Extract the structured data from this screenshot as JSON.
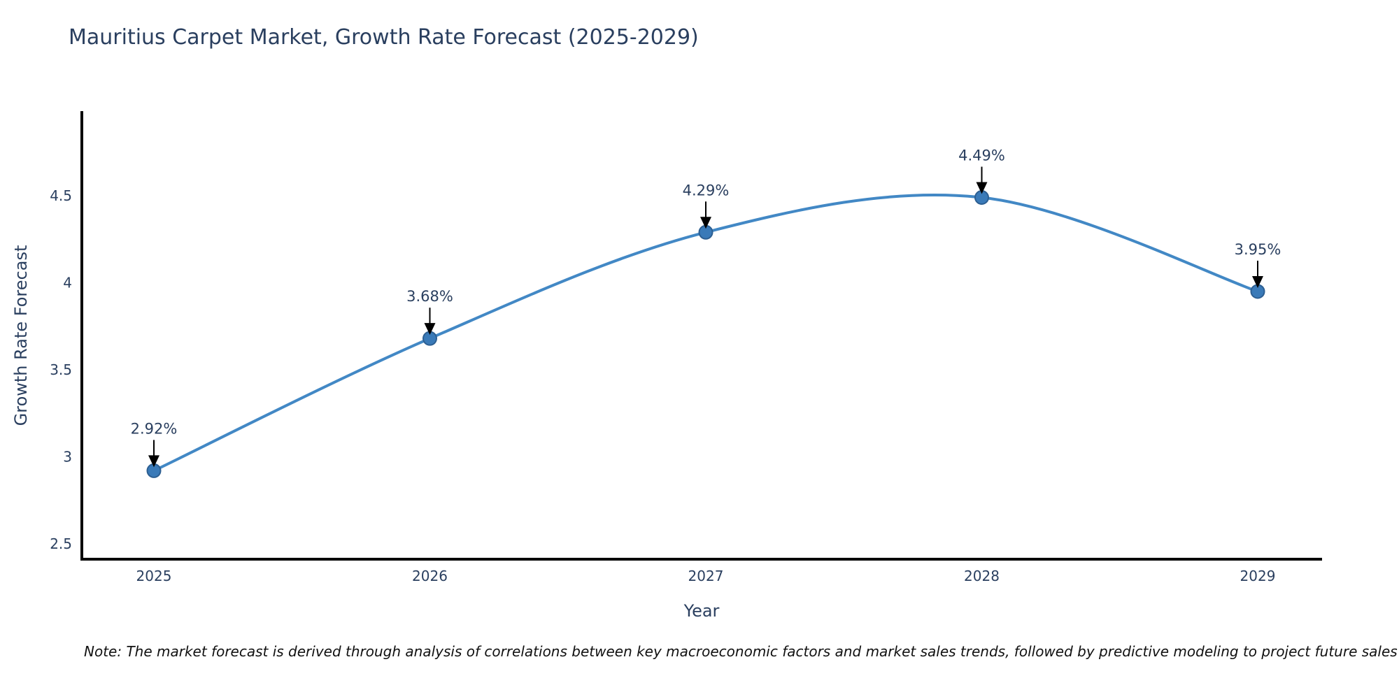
{
  "note": "Note: The market forecast is derived through analysis of correlations between key macroeconomic factors and market sales trends, followed by predictive modeling to project future sales",
  "chart_data": {
    "type": "line",
    "title": "Mauritius Carpet Market, Growth Rate Forecast (2025-2029)",
    "xlabel": "Year",
    "ylabel": "Growth Rate Forecast",
    "x": [
      2025,
      2026,
      2027,
      2028,
      2029
    ],
    "series": [
      {
        "name": "Growth Rate Forecast",
        "values": [
          2.92,
          3.68,
          4.29,
          4.49,
          3.95
        ],
        "point_labels": [
          "2.92%",
          "3.68%",
          "4.29%",
          "4.49%",
          "3.95%"
        ]
      }
    ],
    "line_shape": "spline",
    "markers": true,
    "annotations_arrows": true,
    "yticks": [
      2.5,
      3,
      3.5,
      4,
      4.5
    ],
    "ylim": [
      2.4,
      5.0
    ],
    "grid": false,
    "legend": false,
    "colors": {
      "line": "#4288c5",
      "marker": "#3a7ab8",
      "marker_border": "#2d5f92",
      "arrow": "#000000",
      "axis": "#000000",
      "text": "#2a3f5f"
    }
  }
}
